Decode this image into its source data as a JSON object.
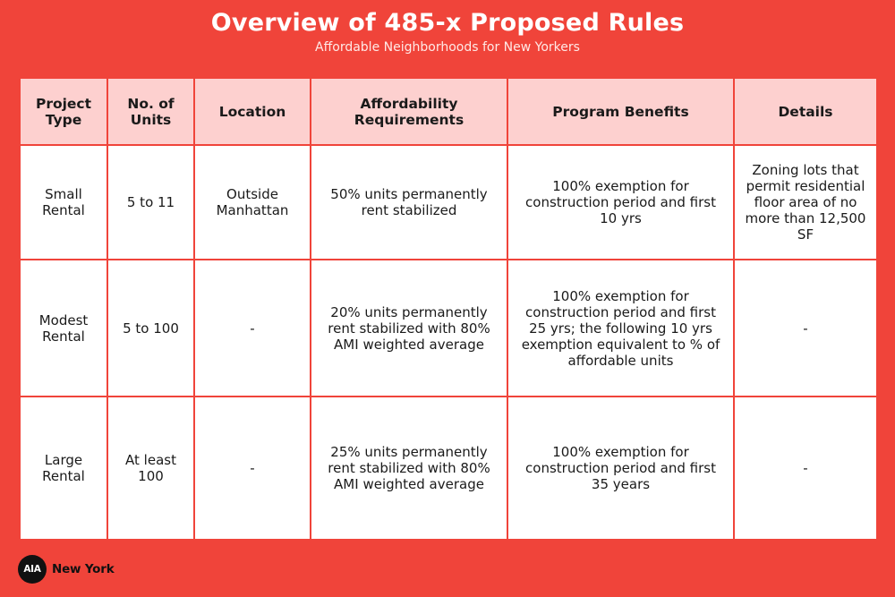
{
  "header": {
    "title": "Overview of 485-x Proposed Rules",
    "subtitle": "Affordable Neighborhoods for New Yorkers"
  },
  "table": {
    "columns": [
      "Project Type",
      "No. of Units",
      "Location",
      "Affordability Requirements",
      "Program Benefits",
      "Details"
    ],
    "rows": [
      {
        "project_type": "Small Rental",
        "units": "5 to 11",
        "location": "Outside Manhattan",
        "affordability": "50% units permanently rent stabilized",
        "benefits": "100% exemption for construction period and first 10 yrs",
        "details": "Zoning lots that permit residential floor area of no more than 12,500 SF"
      },
      {
        "project_type": "Modest Rental",
        "units": "5 to 100",
        "location": "-",
        "affordability": "20% units permanently rent stabilized with 80% AMI weighted average",
        "benefits": "100% exemption for construction period and first 25 yrs; the following 10 yrs exemption equivalent to % of affordable units",
        "details": "-"
      },
      {
        "project_type": "Large Rental",
        "units": "At least 100",
        "location": "-",
        "affordability": "25% units permanently rent stabilized with 80% AMI weighted average",
        "benefits": "100% exemption for construction period and first 35 years",
        "details": "-"
      }
    ]
  },
  "footer": {
    "logo_badge": "AIA",
    "logo_text": "New York"
  },
  "colors": {
    "background": "#f0443a",
    "header_cell": "#fdd0cf",
    "body_cell": "#ffffff"
  }
}
